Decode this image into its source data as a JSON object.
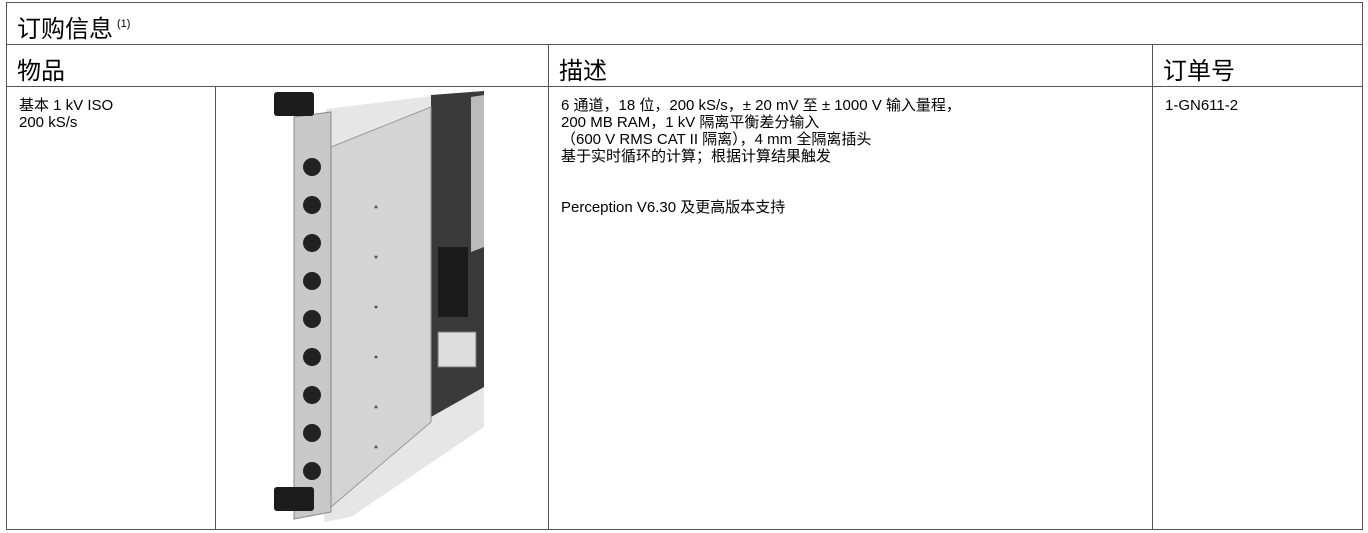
{
  "header": {
    "title": "订购信息",
    "footnote": "(1)"
  },
  "table": {
    "headers": [
      "物品",
      "描述",
      "订单号"
    ],
    "rows": [
      {
        "item": [
          "基本 1 kV ISO",
          "200 kS/s"
        ],
        "description": [
          "6 通道，18 位，200 kS/s，± 20 mV 至 ± 1000 V 输入量程，",
          "200 MB RAM，1 kV 隔离平衡差分输入",
          "（600 V RMS CAT II 隔离），4 mm 全隔离插头",
          "基于实时循环的计算；根据计算结果触发"
        ],
        "support": "Perception V6.30 及更高版本支持",
        "order_number": "1-GN611-2"
      }
    ]
  }
}
